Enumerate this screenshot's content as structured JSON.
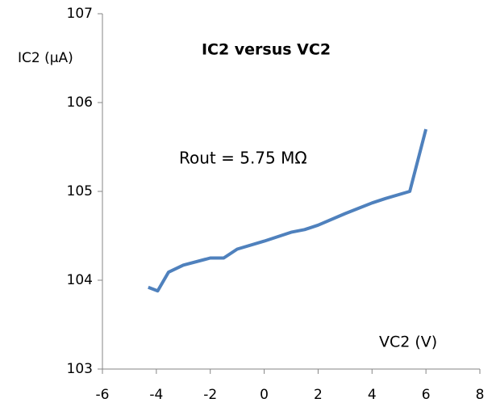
{
  "chart_data": {
    "type": "line",
    "title": "IC2 versus VC2",
    "y_label": "IC2 (µA)",
    "x_label": "VC2 (V)",
    "annotation": "Rout = 5.75 MΩ",
    "x": [
      -4.3,
      -3.95,
      -3.55,
      -3,
      -2,
      -1.5,
      -1,
      0,
      0.5,
      1,
      1.5,
      2,
      3,
      4,
      4.5,
      5.4,
      6
    ],
    "series": [
      {
        "name": "IC2",
        "color": "#4f81bd",
        "values": [
          103.92,
          103.88,
          104.09,
          104.17,
          104.25,
          104.25,
          104.35,
          104.44,
          104.49,
          104.54,
          104.57,
          104.62,
          104.75,
          104.87,
          104.92,
          105.0,
          105.7
        ]
      }
    ],
    "xlim": [
      -6,
      8
    ],
    "xticks": [
      -6,
      -4,
      -2,
      0,
      2,
      4,
      6,
      8
    ],
    "ylim": [
      103,
      107
    ],
    "yticks": [
      103,
      104,
      105,
      106,
      107
    ],
    "grid": false
  }
}
